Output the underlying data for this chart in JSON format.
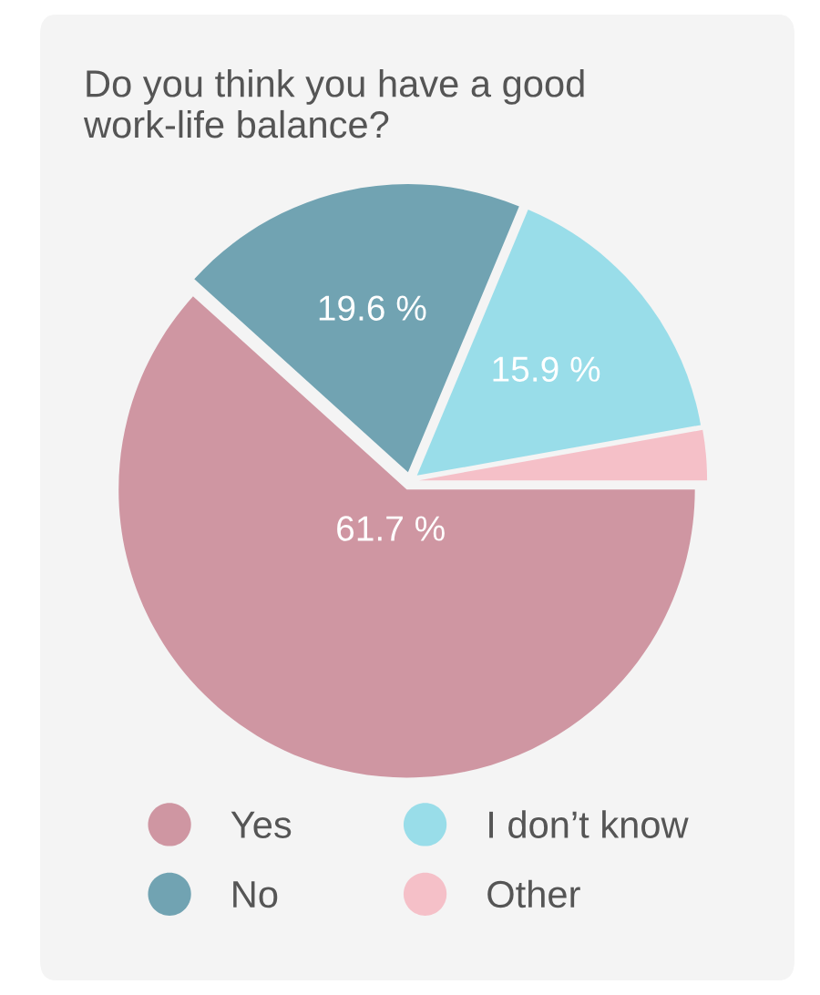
{
  "chart_data": {
    "type": "pie",
    "title": "Do you think you have a good\nwork-life balance?",
    "categories": [
      "Yes",
      "No",
      "I don’t know",
      "Other"
    ],
    "values": [
      61.7,
      19.6,
      15.9,
      2.8
    ],
    "colors": [
      "#cf96a2",
      "#71a3b2",
      "#99dde9",
      "#f5c0c8"
    ],
    "value_labels": [
      "61.7 %",
      "19.6 %",
      "15.9 %",
      null
    ],
    "legend": "bottom"
  }
}
